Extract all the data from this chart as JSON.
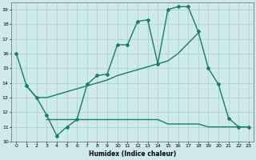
{
  "xlabel": "Humidex (Indice chaleur)",
  "xlim": [
    -0.5,
    23.5
  ],
  "ylim": [
    10,
    19.5
  ],
  "yticks": [
    10,
    11,
    12,
    13,
    14,
    15,
    16,
    17,
    18,
    19
  ],
  "xticks": [
    0,
    1,
    2,
    3,
    4,
    5,
    6,
    7,
    8,
    9,
    10,
    11,
    12,
    13,
    14,
    15,
    16,
    17,
    18,
    19,
    20,
    21,
    22,
    23
  ],
  "bg_color": "#ceeaea",
  "grid_color": "#aacccc",
  "line_color": "#1a7a6e",
  "lines": [
    {
      "x": [
        0,
        1,
        2,
        3,
        4,
        5,
        6,
        7,
        8,
        9,
        10,
        11,
        12,
        13,
        14,
        15,
        16,
        17,
        18,
        19,
        20,
        21,
        22,
        23
      ],
      "y": [
        16,
        13.8,
        13,
        11.8,
        10.4,
        11,
        11.5,
        13.9,
        14.5,
        14.6,
        16.6,
        16.6,
        18.2,
        18.3,
        15.3,
        19.0,
        19.2,
        19.2,
        17.5,
        15.0,
        13.9,
        11.6,
        11,
        11
      ],
      "marker": "D",
      "markersize": 2.0,
      "linewidth": 1.0
    },
    {
      "x": [
        1,
        2,
        3,
        4,
        5,
        6,
        7,
        8,
        9,
        10,
        11,
        12,
        13,
        14,
        15,
        16,
        17,
        18
      ],
      "y": [
        13.8,
        13.0,
        13.0,
        13.2,
        13.4,
        13.6,
        13.8,
        14.0,
        14.2,
        14.5,
        14.7,
        14.9,
        15.1,
        15.3,
        15.5,
        16.0,
        16.7,
        17.4
      ],
      "marker": null,
      "markersize": 0,
      "linewidth": 1.0
    },
    {
      "x": [
        3,
        4,
        5,
        6,
        7,
        8,
        9,
        10,
        11,
        12,
        13,
        14,
        15,
        16,
        17,
        18,
        19,
        20,
        21,
        22,
        23
      ],
      "y": [
        11.5,
        11.5,
        11.5,
        11.5,
        11.5,
        11.5,
        11.5,
        11.5,
        11.5,
        11.5,
        11.5,
        11.5,
        11.2,
        11.2,
        11.2,
        11.2,
        11.0,
        11.0,
        11.0,
        11.0,
        11.0
      ],
      "marker": null,
      "markersize": 0,
      "linewidth": 1.0
    }
  ]
}
